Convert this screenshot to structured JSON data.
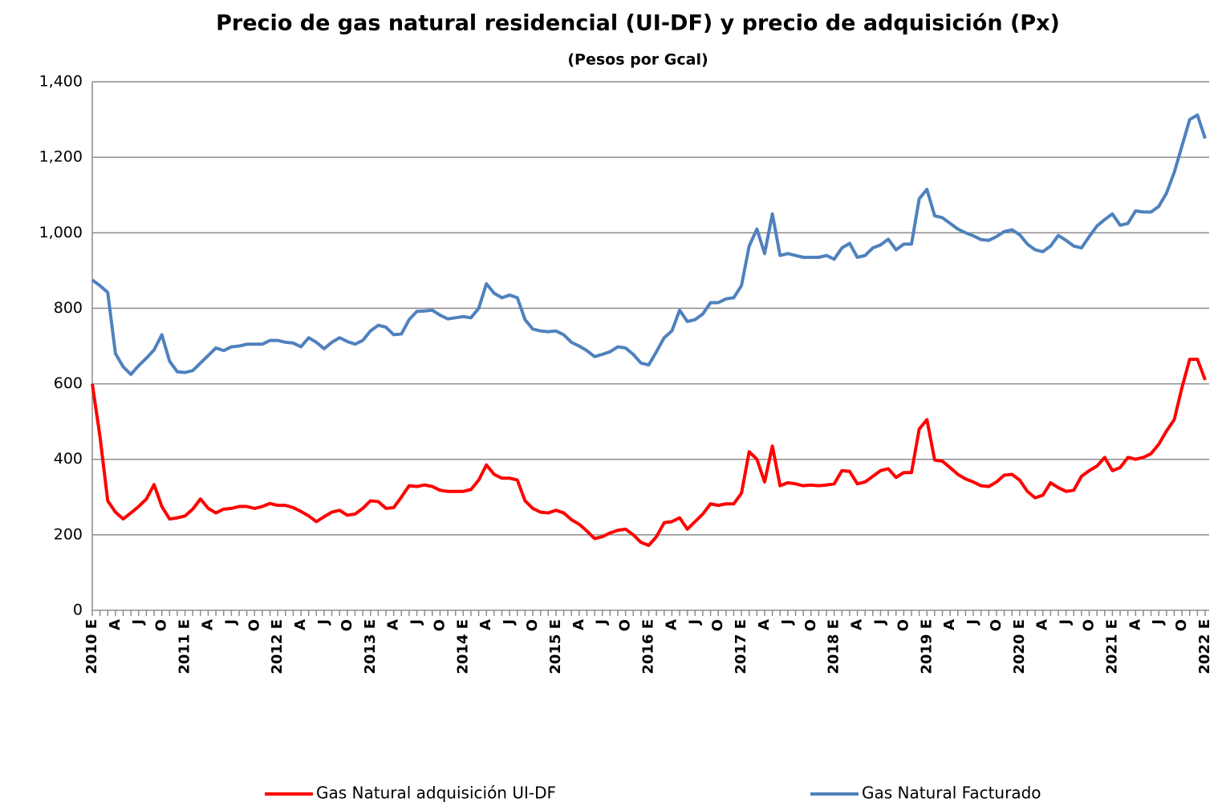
{
  "chart_data": {
    "type": "line",
    "title": "Precio de gas natural residencial (UI-DF) y precio de adquisición (Px)",
    "subtitle": "(Pesos por  Gcal)",
    "categories": [
      "2010 E",
      null,
      null,
      "A",
      null,
      null,
      "J",
      null,
      null,
      "O",
      null,
      null,
      "2011 E",
      null,
      null,
      "A",
      null,
      null,
      "J",
      null,
      null,
      "O",
      null,
      null,
      "2012 E",
      null,
      null,
      "A",
      null,
      null,
      "J",
      null,
      null,
      "O",
      null,
      null,
      "2013 E",
      null,
      null,
      "A",
      null,
      null,
      "J",
      null,
      null,
      "O",
      null,
      null,
      "2014 E",
      null,
      null,
      "A",
      null,
      null,
      "J",
      null,
      null,
      "O",
      null,
      null,
      "2015 E",
      null,
      null,
      "A",
      null,
      null,
      "J",
      null,
      null,
      "O",
      null,
      null,
      "2016 E",
      null,
      null,
      "A",
      null,
      null,
      "J",
      null,
      null,
      "O",
      null,
      null,
      "2017 E",
      null,
      null,
      "A",
      null,
      null,
      "J",
      null,
      null,
      "O",
      null,
      null,
      "2018 E",
      null,
      null,
      "A",
      null,
      null,
      "J",
      null,
      null,
      "O",
      null,
      null,
      "2019 E",
      null,
      null,
      "A",
      null,
      null,
      "J",
      null,
      null,
      "O",
      null,
      null,
      "2020 E",
      null,
      null,
      "A",
      null,
      null,
      "J",
      null,
      null,
      "O",
      null,
      null,
      "2021 E",
      null,
      null,
      "A",
      null,
      null,
      "J",
      null,
      null,
      "O",
      null,
      null,
      "2022 E"
    ],
    "series": [
      {
        "name": "Gas Natural adquisición UI-DF",
        "color": "#ff0000",
        "values": [
          600,
          460,
          290,
          260,
          242,
          258,
          275,
          295,
          333,
          275,
          242,
          245,
          250,
          268,
          295,
          270,
          258,
          268,
          270,
          275,
          275,
          270,
          275,
          283,
          278,
          278,
          272,
          262,
          250,
          235,
          248,
          260,
          265,
          252,
          255,
          270,
          290,
          288,
          270,
          272,
          300,
          330,
          328,
          332,
          328,
          318,
          315,
          315,
          315,
          320,
          345,
          385,
          360,
          350,
          350,
          345,
          290,
          270,
          260,
          258,
          265,
          258,
          240,
          228,
          210,
          190,
          195,
          205,
          212,
          215,
          200,
          180,
          172,
          195,
          232,
          235,
          245,
          215,
          235,
          255,
          282,
          278,
          282,
          282,
          310,
          420,
          400,
          340,
          435,
          330,
          338,
          335,
          330,
          332,
          330,
          332,
          335,
          370,
          368,
          335,
          340,
          355,
          370,
          375,
          352,
          365,
          365,
          480,
          505,
          398,
          395,
          378,
          360,
          348,
          340,
          330,
          328,
          340,
          358,
          360,
          345,
          315,
          298,
          305,
          338,
          325,
          315,
          318,
          355,
          370,
          382,
          405,
          370,
          378,
          405,
          400,
          405,
          415,
          440,
          475,
          505,
          590,
          665,
          665,
          610
        ]
      },
      {
        "name": "Gas Natural Facturado",
        "color": "#4f81bd",
        "values": [
          875,
          860,
          842,
          680,
          645,
          625,
          648,
          668,
          690,
          730,
          660,
          632,
          630,
          635,
          655,
          675,
          695,
          688,
          698,
          700,
          705,
          705,
          705,
          715,
          715,
          710,
          708,
          698,
          722,
          710,
          693,
          710,
          722,
          712,
          705,
          715,
          740,
          755,
          750,
          730,
          732,
          770,
          792,
          793,
          795,
          782,
          772,
          775,
          778,
          775,
          800,
          865,
          840,
          828,
          835,
          828,
          770,
          745,
          740,
          738,
          740,
          730,
          710,
          700,
          688,
          672,
          678,
          685,
          698,
          695,
          678,
          655,
          650,
          685,
          722,
          740,
          795,
          765,
          770,
          785,
          815,
          815,
          825,
          828,
          860,
          965,
          1010,
          945,
          1050,
          940,
          945,
          940,
          935,
          935,
          935,
          940,
          930,
          960,
          972,
          935,
          940,
          960,
          968,
          983,
          955,
          970,
          970,
          1090,
          1115,
          1045,
          1040,
          1025,
          1010,
          1000,
          992,
          982,
          980,
          990,
          1003,
          1008,
          995,
          970,
          955,
          950,
          965,
          993,
          980,
          965,
          960,
          990,
          1018,
          1035,
          1050,
          1020,
          1025,
          1058,
          1055,
          1055,
          1070,
          1105,
          1160,
          1230,
          1300,
          1312,
          1250
        ]
      }
    ],
    "ylim": [
      0,
      1400
    ],
    "yticks": [
      0,
      200,
      400,
      600,
      800,
      {
        "value": 1000,
        "label": "1,000"
      },
      {
        "value": 1200,
        "label": "1,200"
      },
      {
        "value": 1400,
        "label": "1,400"
      }
    ],
    "grid": true
  }
}
